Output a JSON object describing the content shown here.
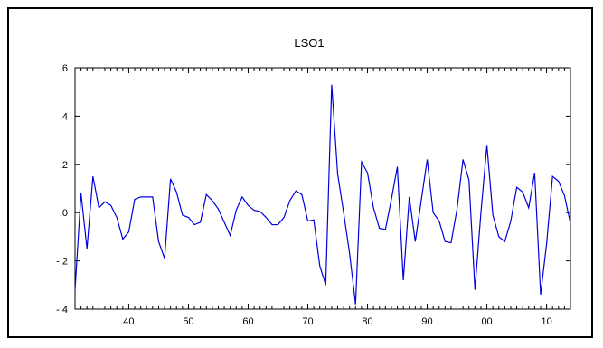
{
  "chart_data": {
    "type": "line",
    "title": "LSO1",
    "xlabel": "",
    "ylabel": "",
    "xlim": [
      1931,
      2014
    ],
    "ylim": [
      -0.4,
      0.6
    ],
    "yticks": [
      -0.4,
      -0.2,
      0.0,
      0.2,
      0.4,
      0.6
    ],
    "ytick_labels": [
      "-.4",
      "-.2",
      ".0",
      ".2",
      ".4",
      ".6"
    ],
    "xticks": [
      1940,
      1950,
      1960,
      1970,
      1980,
      1990,
      2000,
      2010
    ],
    "xtick_labels": [
      "40",
      "50",
      "60",
      "70",
      "80",
      "90",
      "00",
      "10"
    ],
    "grid": false,
    "line_color": "#0000dd",
    "series": [
      {
        "x": [
          1931,
          1932,
          1933,
          1934,
          1935,
          1936,
          1937,
          1938,
          1939,
          1940,
          1941,
          1942,
          1943,
          1944,
          1945,
          1946,
          1947,
          1948,
          1949,
          1950,
          1951,
          1952,
          1953,
          1954,
          1955,
          1956,
          1957,
          1958,
          1959,
          1960,
          1961,
          1962,
          1963,
          1964,
          1965,
          1966,
          1967,
          1968,
          1969,
          1970,
          1971,
          1972,
          1973,
          1974,
          1975,
          1976,
          1977,
          1978,
          1979,
          1980,
          1981,
          1982,
          1983,
          1984,
          1985,
          1986,
          1987,
          1988,
          1989,
          1990,
          1991,
          1992,
          1993,
          1994,
          1995,
          1996,
          1997,
          1998,
          1999,
          2000,
          2001,
          2002,
          2003,
          2004,
          2005,
          2006,
          2007,
          2008,
          2009,
          2010,
          2011,
          2012,
          2013,
          2014
        ],
        "values": [
          -0.32,
          0.08,
          -0.15,
          0.15,
          0.02,
          0.045,
          0.03,
          -0.02,
          -0.11,
          -0.08,
          0.055,
          0.065,
          0.065,
          0.065,
          -0.12,
          -0.19,
          0.14,
          0.085,
          -0.01,
          -0.02,
          -0.05,
          -0.04,
          0.075,
          0.05,
          0.015,
          -0.04,
          -0.095,
          0.01,
          0.065,
          0.03,
          0.01,
          0.005,
          -0.02,
          -0.05,
          -0.05,
          -0.02,
          0.05,
          0.09,
          0.075,
          -0.035,
          -0.03,
          -0.22,
          -0.3,
          0.53,
          0.16,
          0.0,
          -0.17,
          -0.38,
          0.21,
          0.165,
          0.02,
          -0.065,
          -0.07,
          0.055,
          0.19,
          -0.28,
          0.065,
          -0.12,
          0.05,
          0.22,
          0.0,
          -0.035,
          -0.12,
          -0.125,
          0.015,
          0.22,
          0.135,
          -0.32,
          0.0,
          0.28,
          -0.01,
          -0.1,
          -0.12,
          -0.035,
          0.105,
          0.085,
          0.02,
          0.165,
          -0.34,
          -0.13,
          0.15,
          0.13,
          0.07,
          -0.045
        ]
      }
    ]
  }
}
